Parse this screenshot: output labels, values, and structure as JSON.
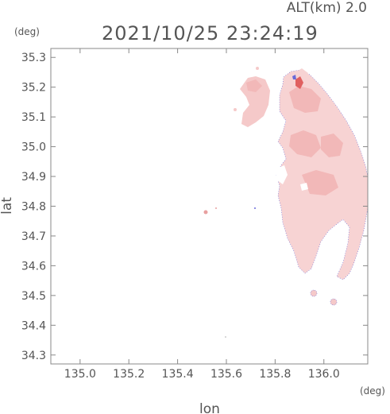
{
  "header": {
    "altitude_label": "ALT(km)  2.0",
    "timestamp": "2021/10/25 23:24:19",
    "y_unit": "(deg)",
    "x_unit": "(deg)"
  },
  "chart_data": {
    "type": "heatmap",
    "title": "",
    "xlabel": "lon",
    "ylabel": "lat",
    "xlim": [
      134.88,
      136.18
    ],
    "ylim": [
      34.27,
      35.33
    ],
    "x_ticks": [
      "135.0",
      "135.2",
      "135.4",
      "135.6",
      "135.8",
      "136.0"
    ],
    "y_ticks": [
      "34.3",
      "34.4",
      "34.5",
      "34.6",
      "34.7",
      "34.8",
      "34.9",
      "35.0",
      "35.1",
      "35.2",
      "35.3"
    ],
    "grid": false,
    "colors": {
      "echo_fill": "#f7d3d3",
      "echo_dense": "#f2b8b8",
      "strong_echo": "#e06060",
      "edge_blue": "#5b5bd6",
      "axis": "#888888"
    }
  }
}
